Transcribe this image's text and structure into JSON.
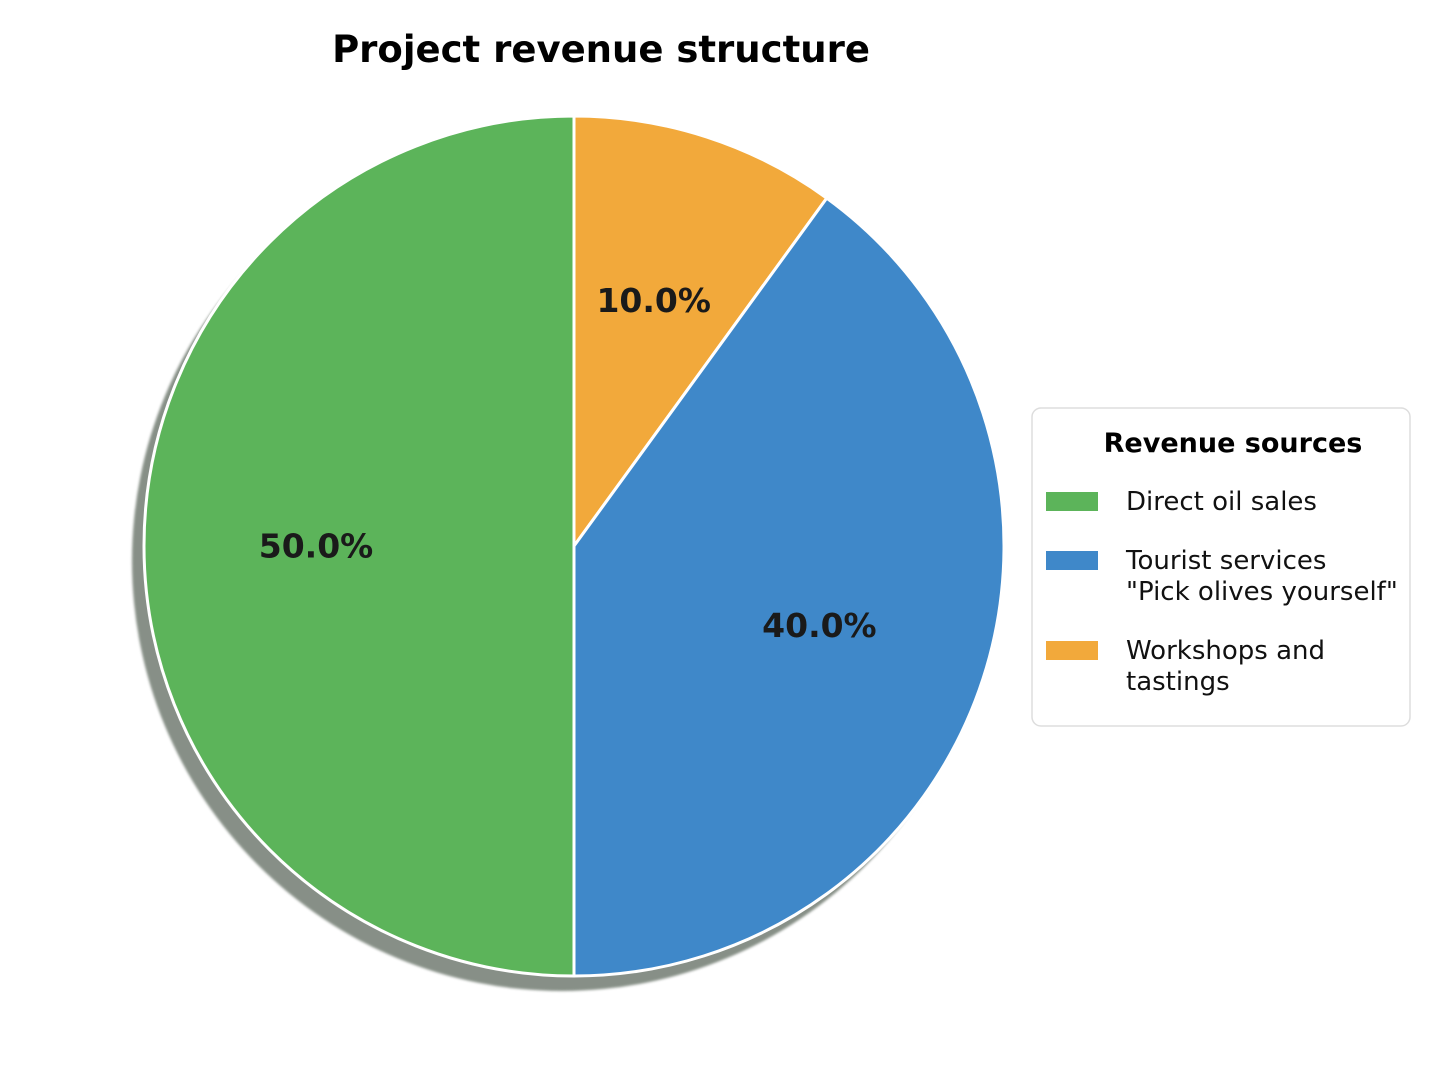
{
  "chart_data": {
    "type": "pie",
    "title": "Project revenue structure",
    "start_angle": "top",
    "direction": "clockwise",
    "shadow": true,
    "slices": [
      {
        "name": "Workshops and tastings",
        "legend_lines": [
          "Workshops and",
          "tastings"
        ],
        "value": 10.0,
        "label": "10.0%",
        "color": "#f2a93b"
      },
      {
        "name": "Tourist services \"Pick olives yourself\"",
        "legend_lines": [
          "Tourist services",
          "\"Pick olives yourself\""
        ],
        "value": 40.0,
        "label": "40.0%",
        "color": "#3f88c9"
      },
      {
        "name": "Direct oil sales",
        "legend_lines": [
          "Direct oil sales"
        ],
        "value": 50.0,
        "label": "50.0%",
        "color": "#5cb45a"
      }
    ],
    "legend": {
      "title": "Revenue sources",
      "placement": "right",
      "order": [
        "Direct oil sales",
        "Tourist services \"Pick olives yourself\"",
        "Workshops and tastings"
      ]
    }
  }
}
